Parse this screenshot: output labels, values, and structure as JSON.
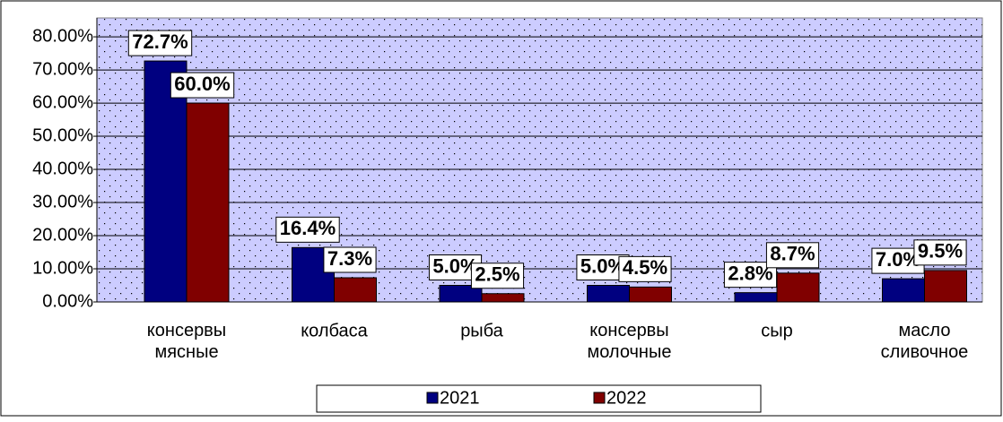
{
  "chart_data": {
    "type": "bar",
    "categories": [
      "консервы мясные",
      "колбаса",
      "рыба",
      "консервы молочные",
      "сыр",
      "масло сливочное"
    ],
    "series": [
      {
        "name": "2021",
        "color": "#000080",
        "values": [
          72.7,
          16.4,
          5.0,
          5.0,
          2.8,
          7.0
        ],
        "value_labels": [
          "72.7%",
          "16.4%",
          "5.0%",
          "5.0%",
          "2.8%",
          "7.0%"
        ]
      },
      {
        "name": "2022",
        "color": "#800000",
        "values": [
          60.0,
          7.3,
          2.5,
          4.5,
          8.7,
          9.5
        ],
        "value_labels": [
          "60.0%",
          "7.3%",
          "2.5%",
          "4.5%",
          "8.7%",
          "9.5%"
        ]
      }
    ],
    "ylim": [
      0,
      85.7
    ],
    "yticks": [
      {
        "value": 0,
        "label": "0.00%"
      },
      {
        "value": 10,
        "label": "10.00%"
      },
      {
        "value": 20,
        "label": "20.00%"
      },
      {
        "value": 30,
        "label": "30.00%"
      },
      {
        "value": 40,
        "label": "40.00%"
      },
      {
        "value": 50,
        "label": "50.00%"
      },
      {
        "value": 60,
        "label": "60.00%"
      },
      {
        "value": 70,
        "label": "70.00%"
      },
      {
        "value": 80,
        "label": "80.00%"
      }
    ],
    "grid": true,
    "legend": "bottom"
  }
}
